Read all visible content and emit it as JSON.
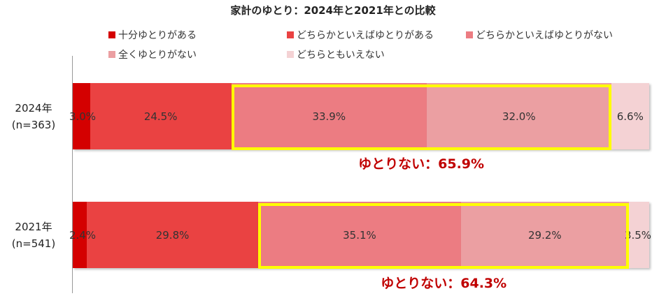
{
  "chart_data": {
    "type": "bar",
    "orientation": "horizontal-stacked-100",
    "title": "家計のゆとり：2024年と2021年との比較",
    "categories": [
      "2024年\n(n=363)",
      "2021年\n(n=541)"
    ],
    "category_lines": [
      [
        "2024年",
        "(n=363)"
      ],
      [
        "2021年",
        "(n=541)"
      ]
    ],
    "series": [
      {
        "name": "十分ゆとりがある",
        "color": "#d40000",
        "values": [
          3.0,
          2.4
        ],
        "labels": [
          "3.0%",
          "2.4%"
        ]
      },
      {
        "name": "どちらかといえばゆとりがある",
        "color": "#ea4242",
        "values": [
          24.5,
          29.8
        ],
        "labels": [
          "24.5%",
          "29.8%"
        ]
      },
      {
        "name": "どちらかといえばゆとりがない",
        "color": "#ec7c82",
        "values": [
          33.9,
          35.1
        ],
        "labels": [
          "33.9%",
          "35.1%"
        ]
      },
      {
        "name": "全くゆとりがない",
        "color": "#eb9fa2",
        "values": [
          32.0,
          29.2
        ],
        "labels": [
          "32.0%",
          "29.2%"
        ]
      },
      {
        "name": "どちらともいえない",
        "color": "#f4d2d4",
        "values": [
          6.6,
          3.5
        ],
        "labels": [
          "6.6%",
          "3.5%"
        ]
      }
    ],
    "annotations": [
      "ゆとりない：65.9%",
      "ゆとりない：64.3%"
    ],
    "highlight_color": "#ffff00",
    "annotation_color": "#c00000",
    "xlim": [
      0,
      100
    ],
    "legend_position": "top"
  }
}
